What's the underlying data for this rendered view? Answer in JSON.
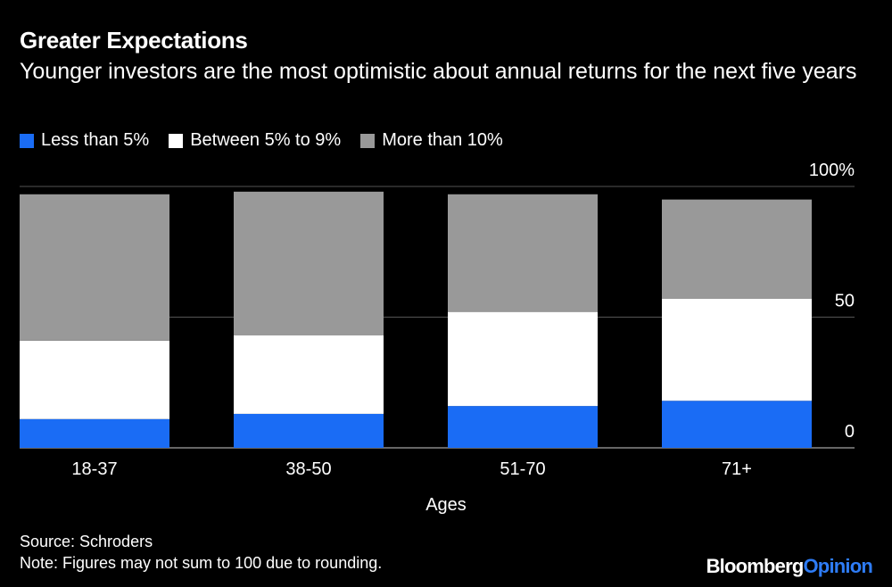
{
  "title": "Greater Expectations",
  "subtitle": "Younger investors are the most optimistic about annual returns for the next five years",
  "legend": [
    {
      "label": "Less than 5%",
      "color": "#1a6cf5"
    },
    {
      "label": "Between 5% to 9%",
      "color": "#ffffff"
    },
    {
      "label": "More than 10%",
      "color": "#999999"
    }
  ],
  "chart_data": {
    "type": "bar",
    "stacked": true,
    "categories": [
      "18-37",
      "38-50",
      "51-70",
      "71+"
    ],
    "series": [
      {
        "name": "Less than 5%",
        "color": "#1a6cf5",
        "values": [
          11,
          13,
          16,
          18
        ]
      },
      {
        "name": "Between 5% to 9%",
        "color": "#ffffff",
        "values": [
          30,
          30,
          36,
          39
        ]
      },
      {
        "name": "More than 10%",
        "color": "#999999",
        "values": [
          56,
          55,
          45,
          38
        ]
      }
    ],
    "xlabel": "Ages",
    "ylabel": "",
    "ylim": [
      0,
      100
    ],
    "yticks": [
      0,
      50,
      100
    ],
    "ytick_labels": [
      "0",
      "50",
      "100%"
    ],
    "grid": true,
    "legend_position": "top-left"
  },
  "source": "Source: Schroders",
  "note": "Note: Figures may not sum to 100 due to rounding.",
  "brand": {
    "main": "Bloomberg",
    "accent": "Opinion"
  }
}
